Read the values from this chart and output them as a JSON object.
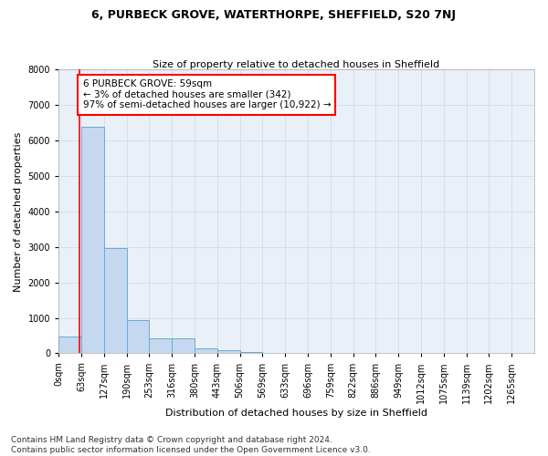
{
  "title": "6, PURBECK GROVE, WATERTHORPE, SHEFFIELD, S20 7NJ",
  "subtitle": "Size of property relative to detached houses in Sheffield",
  "xlabel": "Distribution of detached houses by size in Sheffield",
  "ylabel": "Number of detached properties",
  "bin_labels": [
    "0sqm",
    "63sqm",
    "127sqm",
    "190sqm",
    "253sqm",
    "316sqm",
    "380sqm",
    "443sqm",
    "506sqm",
    "569sqm",
    "633sqm",
    "696sqm",
    "759sqm",
    "822sqm",
    "886sqm",
    "949sqm",
    "1012sqm",
    "1075sqm",
    "1139sqm",
    "1202sqm",
    "1265sqm"
  ],
  "bar_heights": [
    480,
    6380,
    2960,
    940,
    430,
    410,
    150,
    95,
    45,
    0,
    0,
    0,
    0,
    0,
    0,
    0,
    0,
    0,
    0,
    0
  ],
  "bar_color": "#c5d8f0",
  "bar_edge_color": "#6aaad4",
  "property_line_x": 59,
  "bin_width": 63,
  "annotation_text": "6 PURBECK GROVE: 59sqm\n← 3% of detached houses are smaller (342)\n97% of semi-detached houses are larger (10,922) →",
  "annotation_box_color": "white",
  "annotation_box_edge": "red",
  "vline_color": "red",
  "ylim": [
    0,
    8000
  ],
  "yticks": [
    0,
    1000,
    2000,
    3000,
    4000,
    5000,
    6000,
    7000,
    8000
  ],
  "grid_color": "#c8d8ec",
  "bg_color": "#eaf0f8",
  "footer_line1": "Contains HM Land Registry data © Crown copyright and database right 2024.",
  "footer_line2": "Contains public sector information licensed under the Open Government Licence v3.0.",
  "title_fontsize": 9,
  "subtitle_fontsize": 8,
  "xlabel_fontsize": 8,
  "ylabel_fontsize": 8,
  "tick_fontsize": 7,
  "annotation_fontsize": 7.5,
  "footer_fontsize": 6.5
}
